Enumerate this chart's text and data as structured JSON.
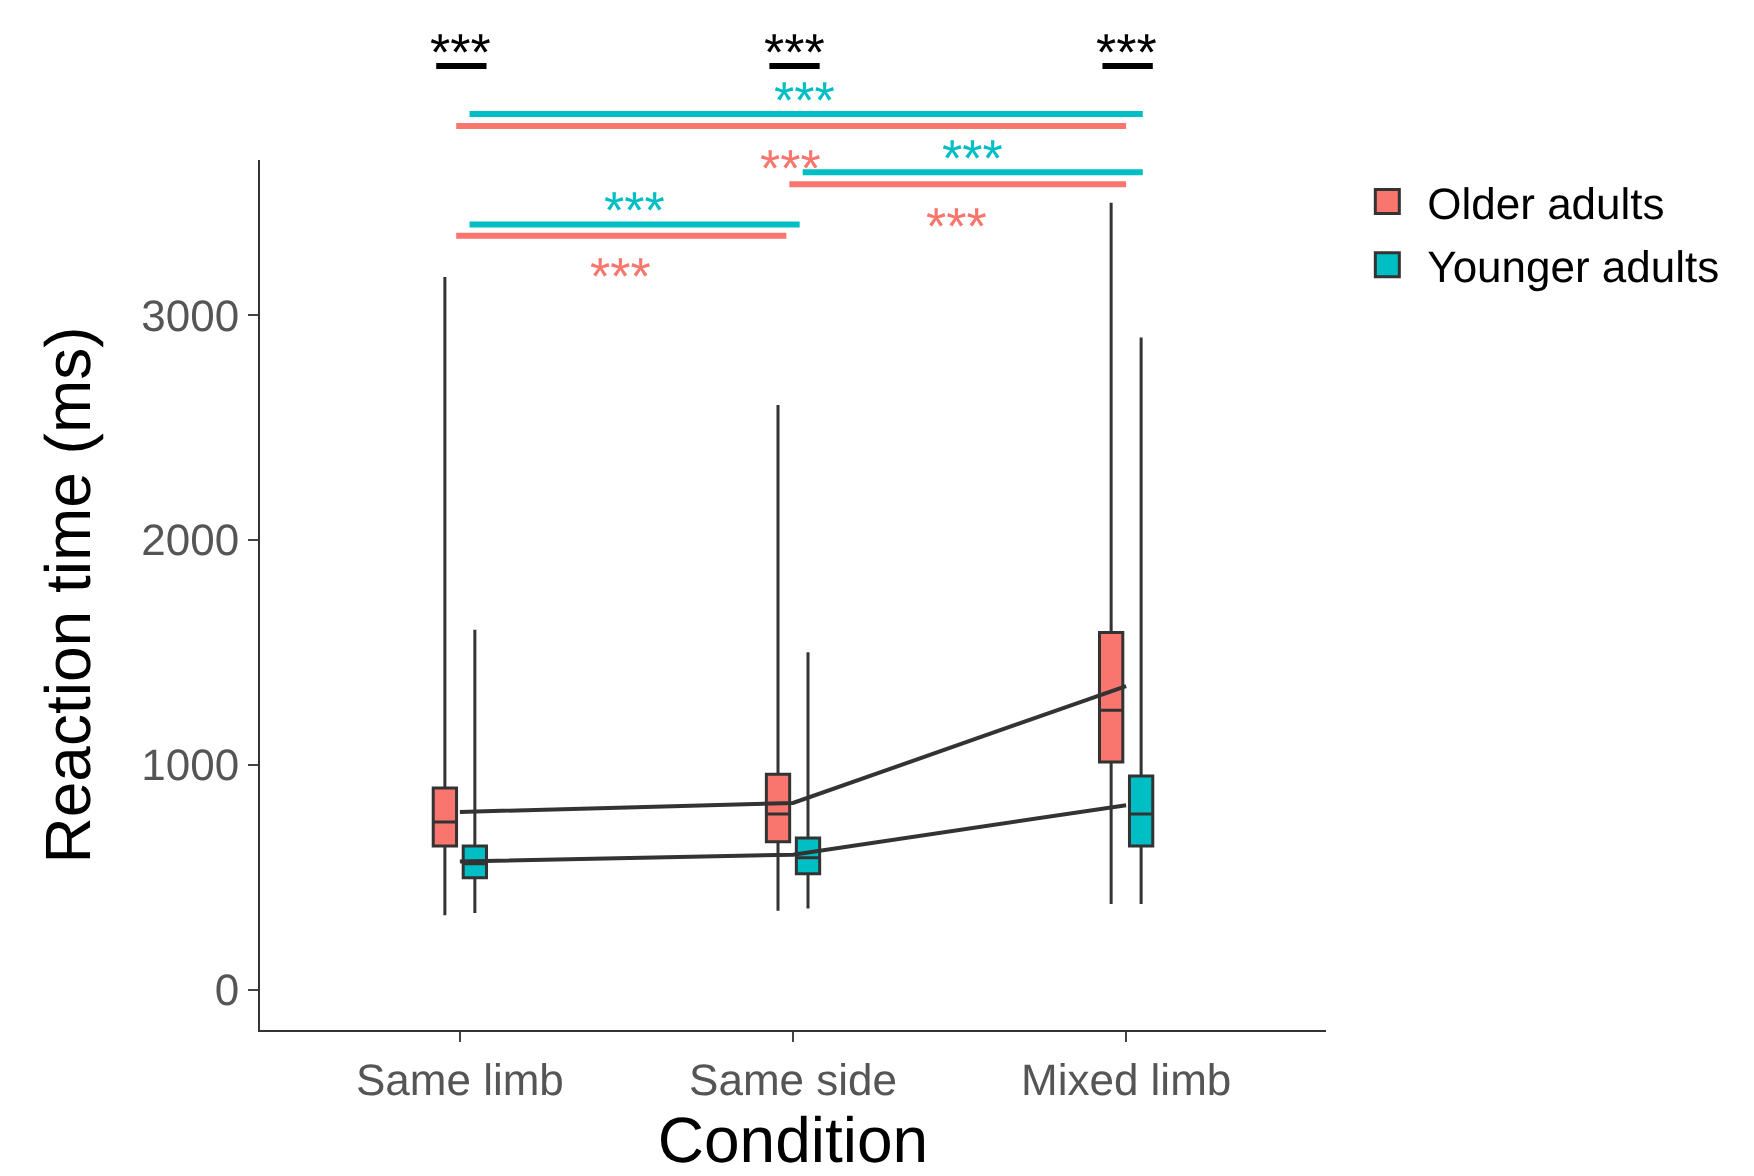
{
  "chart_data": {
    "type": "box",
    "xlabel": "Condition",
    "ylabel": "Reaction time (ms)",
    "categories": [
      "Same limb",
      "Same side",
      "Mixed limb"
    ],
    "ylim": [
      -180,
      3690
    ],
    "yticks": [
      0,
      1000,
      2000,
      3000
    ],
    "legend": "top right",
    "series": [
      {
        "name": "Older adults",
        "color": "#f8766d",
        "boxes": [
          {
            "low": 330,
            "q1": 639,
            "median": 745,
            "q3": 896,
            "high": 3170
          },
          {
            "low": 350,
            "q1": 657,
            "median": 781,
            "q3": 958,
            "high": 2600
          },
          {
            "low": 380,
            "q1": 1012,
            "median": 1242,
            "q3": 1588,
            "high": 3500
          }
        ]
      },
      {
        "name": "Younger adults",
        "color": "#00bfc4",
        "boxes": [
          {
            "low": 340,
            "q1": 497,
            "median": 559,
            "q3": 639,
            "high": 1600
          },
          {
            "low": 360,
            "q1": 515,
            "median": 586,
            "q3": 674,
            "high": 1500
          },
          {
            "low": 380,
            "q1": 639,
            "median": 781,
            "q3": 950,
            "high": 2900
          }
        ]
      },
      {
        "type": "line",
        "color": "#333333",
        "values": [
          790,
          830,
          1350
        ]
      },
      {
        "type": "line",
        "color": "#333333",
        "values": [
          570,
          600,
          820
        ]
      }
    ],
    "annotations": [
      "***",
      "***",
      "***",
      "***",
      "***",
      "***",
      "***",
      "***",
      "***"
    ]
  }
}
